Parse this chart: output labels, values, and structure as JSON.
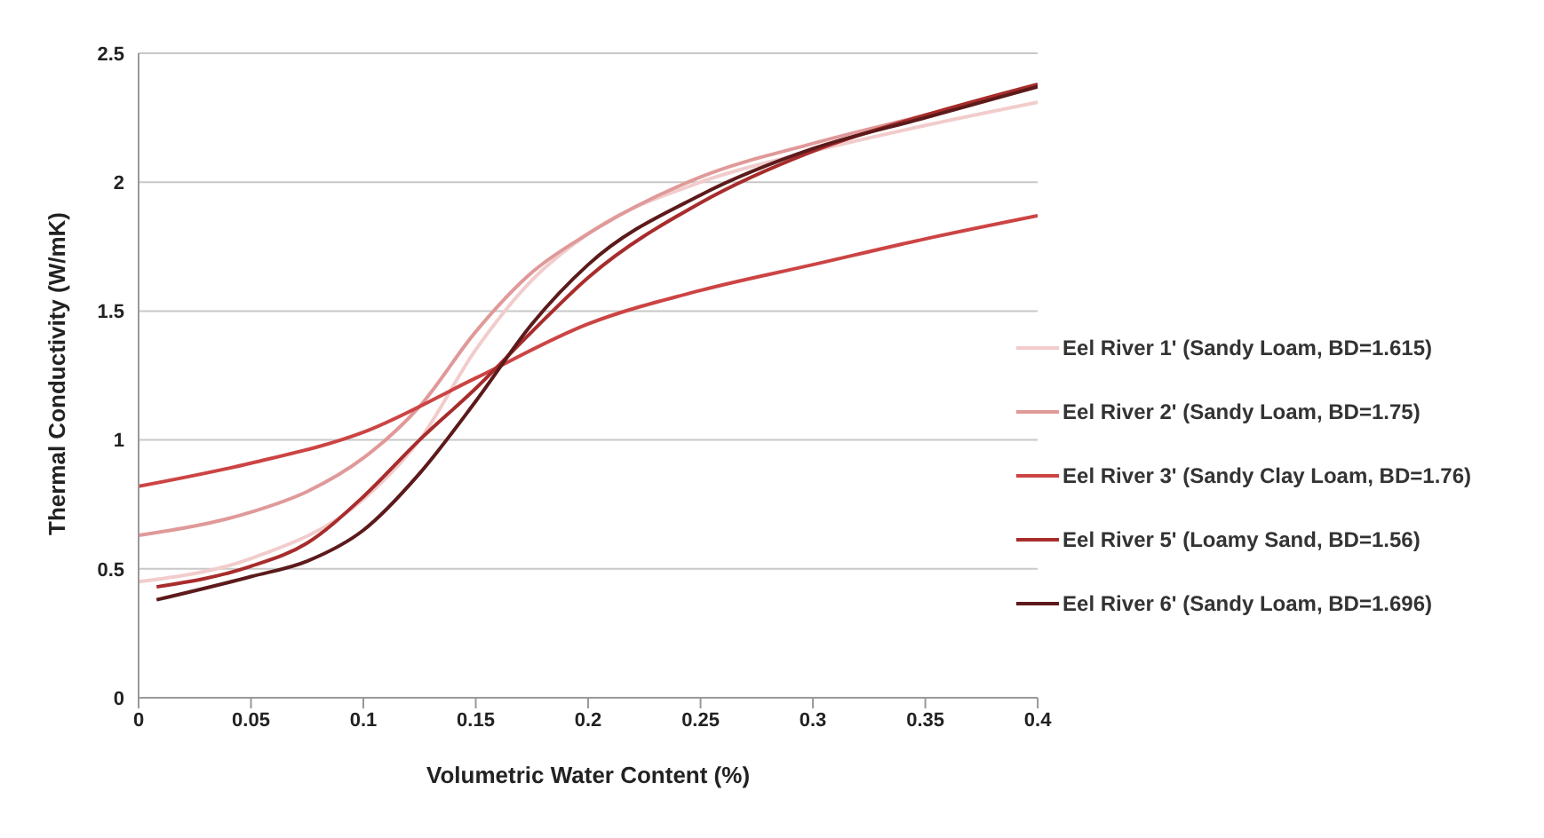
{
  "chart_data": {
    "type": "line",
    "xlabel": "Volumetric Water Content (%)",
    "ylabel": "Thermal Conductivity (W/mK)",
    "xlim": [
      0,
      0.4
    ],
    "xticks": [
      0,
      0.05,
      0.1,
      0.15,
      0.2,
      0.25,
      0.3,
      0.35,
      0.4
    ],
    "ylim": [
      0,
      2.5
    ],
    "yticks": [
      0,
      0.5,
      1,
      1.5,
      2,
      2.5
    ],
    "grid": "y",
    "legend": "right",
    "marker": "none",
    "line_style": "solid",
    "series": [
      {
        "name": "Eel River 1' (Sandy Loam, BD=1.615)",
        "color": "#f2cccc",
        "x": [
          0,
          0.05,
          0.1,
          0.125,
          0.15,
          0.175,
          0.2,
          0.25,
          0.3,
          0.35,
          0.4
        ],
        "values": [
          0.45,
          0.54,
          0.77,
          1.0,
          1.35,
          1.62,
          1.8,
          2.0,
          2.12,
          2.22,
          2.31
        ]
      },
      {
        "name": "Eel River 2' (Sandy Loam, BD=1.75)",
        "color": "#e09999",
        "x": [
          0,
          0.05,
          0.075,
          0.1,
          0.125,
          0.15,
          0.175,
          0.2,
          0.25,
          0.3,
          0.35,
          0.4
        ],
        "values": [
          0.63,
          0.72,
          0.8,
          0.93,
          1.13,
          1.42,
          1.65,
          1.8,
          2.02,
          2.15,
          2.26,
          2.37
        ]
      },
      {
        "name": "Eel River 3' (Sandy Clay Loam, BD=1.76)",
        "color": "#cc4444",
        "x": [
          0,
          0.05,
          0.1,
          0.15,
          0.2,
          0.25,
          0.3,
          0.35,
          0.4
        ],
        "values": [
          0.82,
          0.91,
          1.03,
          1.24,
          1.45,
          1.58,
          1.68,
          1.78,
          1.87
        ]
      },
      {
        "name": "Eel River 5' (Loamy Sand, BD=1.56)",
        "color": "#a82c2c",
        "x": [
          0.008,
          0.05,
          0.075,
          0.1,
          0.125,
          0.15,
          0.175,
          0.2,
          0.25,
          0.3,
          0.35,
          0.4
        ],
        "values": [
          0.43,
          0.51,
          0.6,
          0.78,
          1.0,
          1.2,
          1.42,
          1.63,
          1.92,
          2.12,
          2.26,
          2.38
        ]
      },
      {
        "name": "Eel River 6' (Sandy Loam, BD=1.696)",
        "color": "#5c1a1a",
        "x": [
          0.008,
          0.05,
          0.075,
          0.1,
          0.125,
          0.15,
          0.175,
          0.2,
          0.25,
          0.3,
          0.35,
          0.4
        ],
        "values": [
          0.38,
          0.47,
          0.53,
          0.65,
          0.87,
          1.15,
          1.45,
          1.68,
          1.95,
          2.13,
          2.25,
          2.37
        ]
      }
    ]
  }
}
